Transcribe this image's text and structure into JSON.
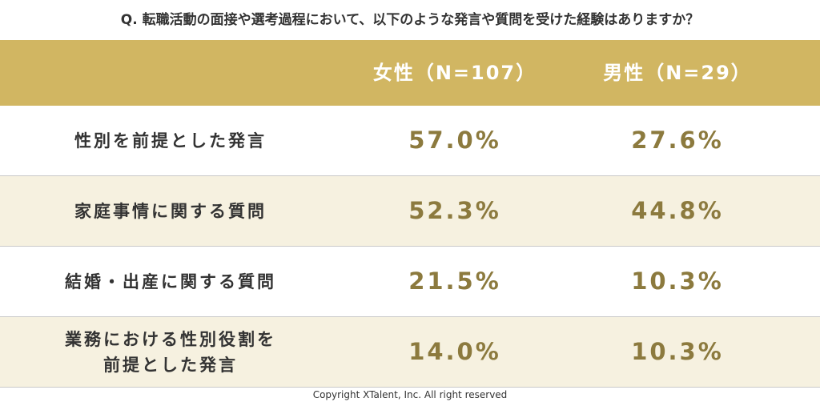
{
  "header": {
    "title": "Q. 転職活動の面接や選考過程において、以下のような発言や質問を受けた経験はありますか？"
  },
  "table": {
    "columns": [
      "女性（N=107）",
      "男性（N=29）"
    ],
    "rows": [
      {
        "label": "性別を前提とした発言",
        "cells": [
          "57.0%",
          "27.6%"
        ]
      },
      {
        "label": "家庭事情に関する質問",
        "cells": [
          "52.3%",
          "44.8%"
        ]
      },
      {
        "label": "結婚・出産に関する質問",
        "cells": [
          "21.5%",
          "10.3%"
        ]
      },
      {
        "label": "業務における性別役割を\n前提とした発言",
        "cells": [
          "14.0%",
          "10.3%"
        ]
      }
    ]
  },
  "footer": {
    "copyright": "Copyright XTalent, Inc. All right reserved"
  }
}
